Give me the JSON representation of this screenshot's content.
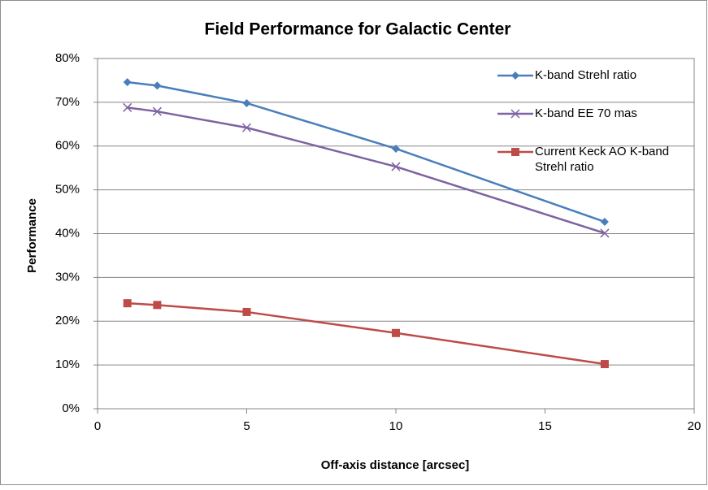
{
  "chart_data": {
    "type": "line",
    "title": "Field Performance for Galactic Center",
    "x_label": "Off-axis distance [arcsec]",
    "y_label": "Performance",
    "x": [
      1,
      2,
      5,
      10,
      17
    ],
    "series": [
      {
        "name": "K-band Strehl ratio",
        "color": "#4a7ebb",
        "marker": "diamond",
        "values": [
          74.6,
          73.8,
          69.8,
          59.4,
          42.7
        ]
      },
      {
        "name": "K-band EE 70 mas",
        "color": "#7e62a1",
        "marker": "x",
        "values": [
          68.8,
          67.9,
          64.2,
          55.3,
          40.1
        ]
      },
      {
        "name": "Current Keck AO K-band Strehl ratio",
        "color": "#be4b48",
        "marker": "square",
        "values": [
          24.1,
          23.7,
          22.1,
          17.3,
          10.2
        ]
      }
    ],
    "xlim": [
      0,
      20
    ],
    "xticks": [
      0,
      5,
      10,
      15,
      20
    ],
    "ylim": [
      0,
      80
    ],
    "yticks": [
      {
        "value": 0,
        "label": "0%"
      },
      {
        "value": 10,
        "label": "10%"
      },
      {
        "value": 20,
        "label": "20%"
      },
      {
        "value": 30,
        "label": "30%"
      },
      {
        "value": 40,
        "label": "40%"
      },
      {
        "value": 50,
        "label": "50%"
      },
      {
        "value": 60,
        "label": "60%"
      },
      {
        "value": 70,
        "label": "70%"
      },
      {
        "value": 80,
        "label": "80%"
      }
    ],
    "grid": true,
    "legend": "upper right"
  }
}
